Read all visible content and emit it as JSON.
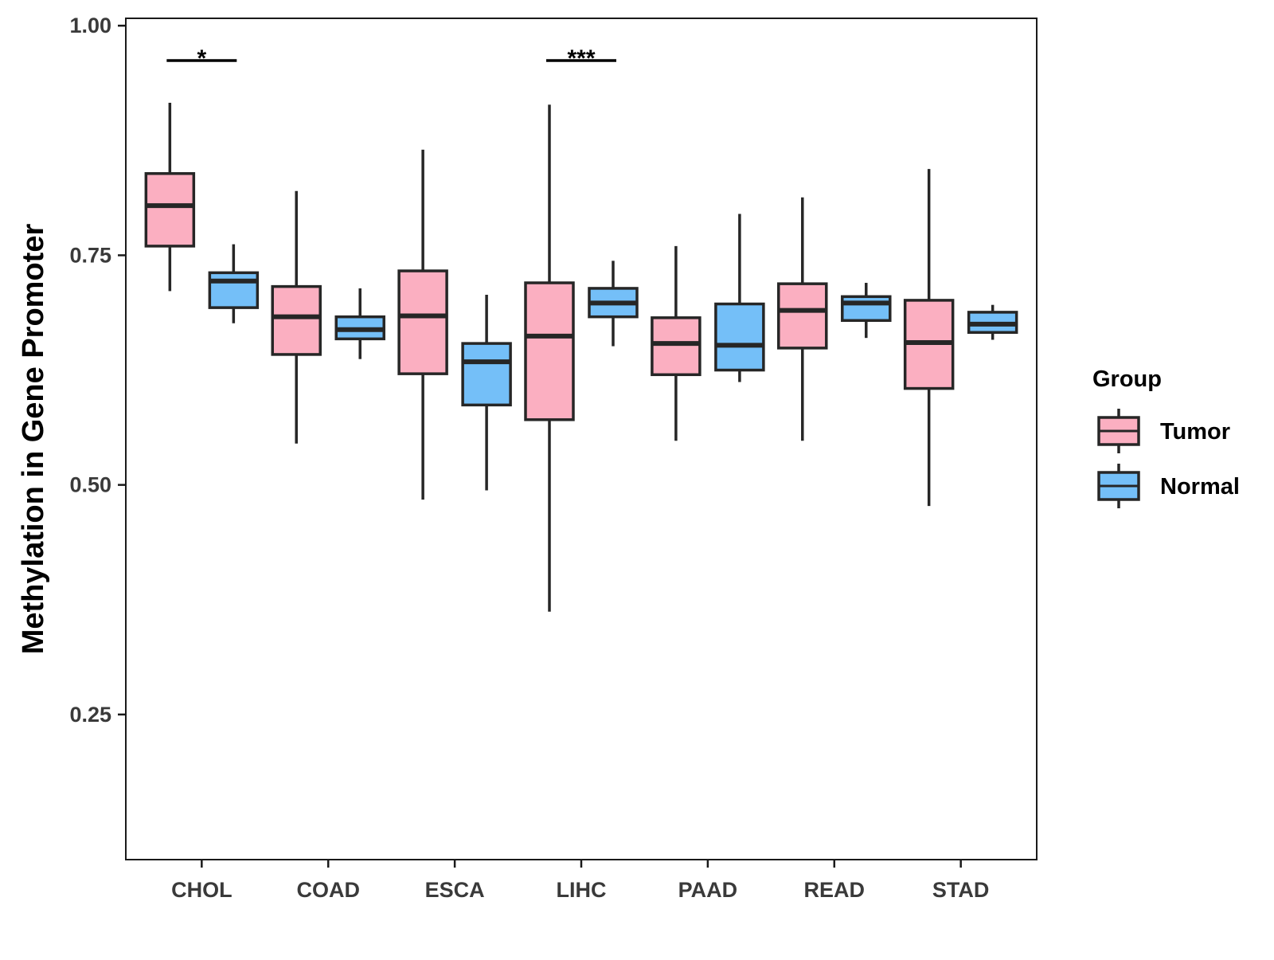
{
  "chart_data": {
    "type": "boxplot",
    "title": "",
    "xlabel": "",
    "ylabel": "Methylation in Gene Promoter",
    "ylim": [
      0.092,
      1.008
    ],
    "yticks": [
      0.25,
      0.5,
      0.75,
      1.0
    ],
    "ytick_labels": [
      "0.25",
      "0.50",
      "0.75",
      "1.00"
    ],
    "categories": [
      "CHOL",
      "COAD",
      "ESCA",
      "LIHC",
      "PAAD",
      "READ",
      "STAD"
    ],
    "grid": false,
    "legend": {
      "title": "Group",
      "position": "right",
      "entries": [
        {
          "name": "Tumor",
          "color": "#fbafc1"
        },
        {
          "name": "Normal",
          "color": "#74bff8"
        }
      ]
    },
    "series": [
      {
        "name": "Tumor",
        "color": "#fbafc1",
        "boxes": [
          {
            "category": "CHOL",
            "whisker_low": 0.711,
            "q1": 0.76,
            "median": 0.804,
            "q3": 0.839,
            "whisker_high": 0.916
          },
          {
            "category": "COAD",
            "whisker_low": 0.545,
            "q1": 0.642,
            "median": 0.683,
            "q3": 0.716,
            "whisker_high": 0.82
          },
          {
            "category": "ESCA",
            "whisker_low": 0.484,
            "q1": 0.621,
            "median": 0.684,
            "q3": 0.733,
            "whisker_high": 0.865
          },
          {
            "category": "LIHC",
            "whisker_low": 0.362,
            "q1": 0.571,
            "median": 0.662,
            "q3": 0.72,
            "whisker_high": 0.914
          },
          {
            "category": "PAAD",
            "whisker_low": 0.548,
            "q1": 0.62,
            "median": 0.654,
            "q3": 0.682,
            "whisker_high": 0.76
          },
          {
            "category": "READ",
            "whisker_low": 0.548,
            "q1": 0.649,
            "median": 0.69,
            "q3": 0.719,
            "whisker_high": 0.813
          },
          {
            "category": "STAD",
            "whisker_low": 0.477,
            "q1": 0.605,
            "median": 0.655,
            "q3": 0.701,
            "whisker_high": 0.844
          }
        ]
      },
      {
        "name": "Normal",
        "color": "#74bff8",
        "boxes": [
          {
            "category": "CHOL",
            "whisker_low": 0.676,
            "q1": 0.693,
            "median": 0.722,
            "q3": 0.731,
            "whisker_high": 0.762
          },
          {
            "category": "COAD",
            "whisker_low": 0.637,
            "q1": 0.659,
            "median": 0.669,
            "q3": 0.683,
            "whisker_high": 0.714
          },
          {
            "category": "ESCA",
            "whisker_low": 0.494,
            "q1": 0.587,
            "median": 0.634,
            "q3": 0.654,
            "whisker_high": 0.707
          },
          {
            "category": "LIHC",
            "whisker_low": 0.651,
            "q1": 0.683,
            "median": 0.698,
            "q3": 0.714,
            "whisker_high": 0.744
          },
          {
            "category": "PAAD",
            "whisker_low": 0.612,
            "q1": 0.625,
            "median": 0.652,
            "q3": 0.697,
            "whisker_high": 0.795
          },
          {
            "category": "READ",
            "whisker_low": 0.66,
            "q1": 0.679,
            "median": 0.698,
            "q3": 0.705,
            "whisker_high": 0.72
          },
          {
            "category": "STAD",
            "whisker_low": 0.658,
            "q1": 0.666,
            "median": 0.675,
            "q3": 0.688,
            "whisker_high": 0.696
          }
        ]
      }
    ],
    "annotations": [
      {
        "category": "CHOL",
        "text": "*",
        "y": 0.962
      },
      {
        "category": "LIHC",
        "text": "***",
        "y": 0.962
      }
    ]
  }
}
